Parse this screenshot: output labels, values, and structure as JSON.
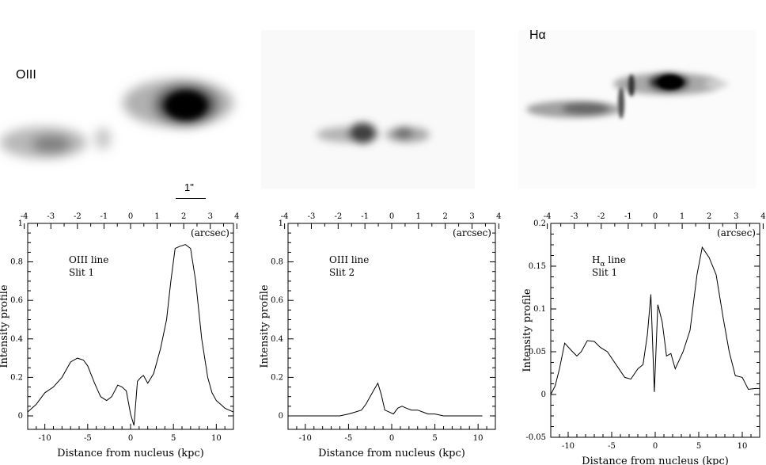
{
  "images": {
    "left_label": "OIII",
    "right_label": "Hα",
    "scale_label": "1\""
  },
  "common": {
    "xlabel": "Distance from nucleus (kpc)",
    "ylabel": "Intensity profile",
    "toplabel": "(arcsec)"
  },
  "chart_data": [
    {
      "type": "line",
      "annotation": [
        "OIII line",
        "Slit 1"
      ],
      "xlabel": "Distance from nucleus (kpc)",
      "ylabel": "Intensity profile",
      "top_axis_label": "(arcsec)",
      "xlim": [
        -12,
        12
      ],
      "ylim": [
        -0.07,
        1.0
      ],
      "xticks": [
        -10,
        -5,
        0,
        5,
        10
      ],
      "yticks": [
        0,
        0.2,
        0.4,
        0.6,
        0.8,
        1
      ],
      "yticklabels": [
        "0",
        "0.2",
        "0.4",
        "0.6",
        "0.8",
        "1"
      ],
      "top_ticks": [
        -4,
        -3,
        -2,
        -1,
        0,
        1,
        2,
        3,
        4
      ],
      "x": [
        -12,
        -11,
        -10,
        -9,
        -8,
        -7,
        -6.2,
        -5.5,
        -5,
        -4.2,
        -3.5,
        -2.8,
        -2.2,
        -1.5,
        -1.0,
        -0.5,
        0,
        0.4,
        0.8,
        1.2,
        1.5,
        2,
        2.7,
        3.5,
        4.2,
        4.7,
        5.2,
        5.7,
        6.4,
        7,
        7.6,
        8.3,
        9,
        9.5,
        10,
        10.5,
        11,
        12
      ],
      "y": [
        0.02,
        0.06,
        0.12,
        0.15,
        0.2,
        0.28,
        0.3,
        0.29,
        0.26,
        0.17,
        0.1,
        0.08,
        0.1,
        0.16,
        0.15,
        0.13,
        0.01,
        -0.05,
        0.18,
        0.2,
        0.21,
        0.17,
        0.22,
        0.35,
        0.5,
        0.7,
        0.87,
        0.88,
        0.89,
        0.87,
        0.7,
        0.4,
        0.2,
        0.12,
        0.08,
        0.06,
        0.04,
        0.02
      ]
    },
    {
      "type": "line",
      "annotation": [
        "OIII line",
        "Slit 2"
      ],
      "xlabel": "Distance from nucleus (kpc)",
      "ylabel": "Intensity profile",
      "top_axis_label": "(arcsec)",
      "xlim": [
        -12,
        12
      ],
      "ylim": [
        -0.07,
        1.0
      ],
      "xticks": [
        -10,
        -5,
        0,
        5,
        10
      ],
      "yticks": [
        0,
        0.2,
        0.4,
        0.6,
        0.8,
        1
      ],
      "yticklabels": [
        "0",
        "0.2",
        "0.4",
        "0.6",
        "0.8",
        "1"
      ],
      "top_ticks": [
        -4,
        -3,
        -2,
        -1,
        0,
        1,
        2,
        3,
        4
      ],
      "x": [
        -11.5,
        -9,
        -7.5,
        -6,
        -5,
        -4.2,
        -3.5,
        -3,
        -2.5,
        -2,
        -1.6,
        -1.2,
        -0.8,
        -0.3,
        0.2,
        0.7,
        1.2,
        1.7,
        2.3,
        3,
        3.6,
        4.2,
        5,
        6,
        7,
        8.5,
        10.5
      ],
      "y": [
        0,
        0,
        0,
        0,
        0.01,
        0.02,
        0.03,
        0.06,
        0.1,
        0.14,
        0.17,
        0.11,
        0.03,
        0.02,
        0.01,
        0.04,
        0.05,
        0.04,
        0.03,
        0.03,
        0.02,
        0.01,
        0.01,
        0,
        0,
        0,
        0
      ]
    },
    {
      "type": "line",
      "annotation": [
        "Hα line",
        "Slit 1"
      ],
      "xlabel": "Distance from nucleus (kpc)",
      "ylabel": "Intensity profile",
      "top_axis_label": "(arcsec)",
      "xlim": [
        -12,
        12
      ],
      "ylim": [
        -0.05,
        0.2
      ],
      "xticks": [
        -10,
        -5,
        0,
        5,
        10
      ],
      "yticks": [
        -0.05,
        0,
        0.05,
        0.1,
        0.15,
        0.2
      ],
      "yticklabels": [
        "-0.05",
        "0",
        "0.05",
        "0.1",
        "0.15",
        "0.2"
      ],
      "top_ticks": [
        -4,
        -3,
        -2,
        -1,
        0,
        1,
        2,
        3,
        4
      ],
      "x": [
        -12,
        -11.5,
        -11,
        -10.4,
        -9.5,
        -9,
        -8.5,
        -7.8,
        -7,
        -6.3,
        -5.5,
        -4.5,
        -3.5,
        -2.8,
        -2,
        -1.4,
        -0.9,
        -0.5,
        -0.1,
        0.3,
        0.8,
        1.3,
        1.8,
        2.3,
        3.2,
        4,
        4.8,
        5.4,
        6.2,
        7,
        7.8,
        8.5,
        9.2,
        10,
        10.7,
        11.5,
        12
      ],
      "y": [
        0,
        0.01,
        0.03,
        0.06,
        0.05,
        0.045,
        0.05,
        0.063,
        0.062,
        0.055,
        0.05,
        0.035,
        0.02,
        0.018,
        0.03,
        0.035,
        0.07,
        0.117,
        0.003,
        0.105,
        0.085,
        0.045,
        0.048,
        0.03,
        0.05,
        0.075,
        0.14,
        0.172,
        0.16,
        0.14,
        0.09,
        0.05,
        0.022,
        0.02,
        0.006,
        0.007,
        0.007
      ]
    }
  ]
}
